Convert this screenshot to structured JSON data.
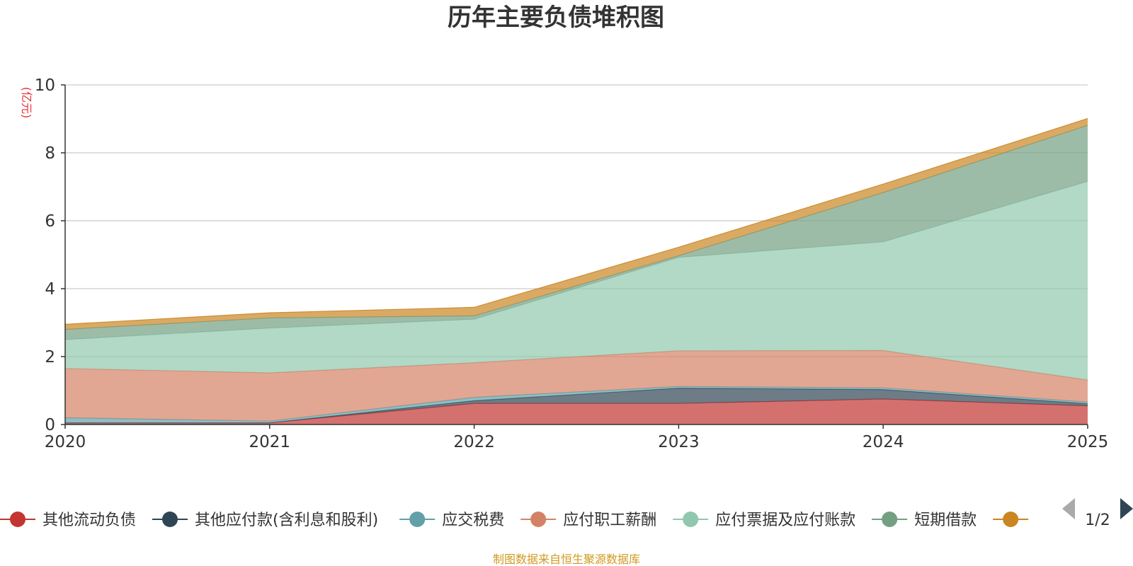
{
  "chart_data": {
    "type": "area",
    "stacked": true,
    "title": "历年主要负债堆积图",
    "unit_label": "(亿元)",
    "x": [
      "2020",
      "2021",
      "2022",
      "2023",
      "2024",
      "2025"
    ],
    "ylim": [
      0,
      10
    ],
    "yticks": [
      0,
      2,
      4,
      6,
      8,
      10
    ],
    "grid": true,
    "series": [
      {
        "name": "其他流动负债",
        "color": "#c23531",
        "values": [
          0.05,
          0.05,
          0.62,
          0.62,
          0.75,
          0.55
        ]
      },
      {
        "name": "其他应付款(含利息和股利)",
        "color": "#2f4554",
        "values": [
          0.0,
          0.0,
          0.08,
          0.45,
          0.28,
          0.06
        ]
      },
      {
        "name": "应交税费",
        "color": "#61a0a8",
        "values": [
          0.15,
          0.05,
          0.1,
          0.05,
          0.05,
          0.05
        ]
      },
      {
        "name": "应付职工薪酬",
        "color": "#d48265",
        "values": [
          1.45,
          1.42,
          1.02,
          1.05,
          1.1,
          0.65
        ]
      },
      {
        "name": "应付票据及应付账款",
        "color": "#91c7ae",
        "values": [
          0.85,
          1.32,
          1.28,
          2.75,
          3.2,
          5.85
        ]
      },
      {
        "name": "短期借款",
        "color": "#749f83",
        "values": [
          0.3,
          0.3,
          0.1,
          0.05,
          1.45,
          1.65
        ]
      },
      {
        "name": "",
        "color": "#ca8622",
        "values": [
          0.15,
          0.15,
          0.25,
          0.25,
          0.25,
          0.2
        ]
      }
    ],
    "legend": {
      "placement": "bottom",
      "page": "1/2"
    }
  },
  "footer": {
    "source": "制图数据来自恒生聚源数据库"
  }
}
